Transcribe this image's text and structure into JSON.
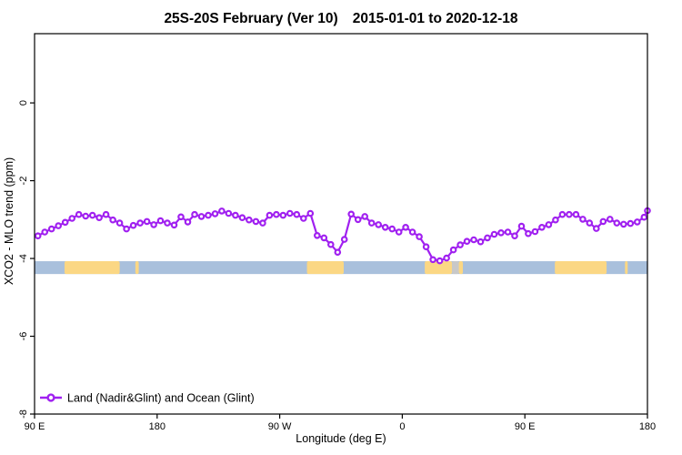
{
  "header": {
    "title_main": "25S-20S February (Ver 10)",
    "title_dates": "2015-01-01 to 2020-12-18"
  },
  "chart_data": {
    "type": "line",
    "title": "25S-20S February (Ver 10)  2015-01-01 to 2020-12-18",
    "xlabel": "Longitude (deg E)",
    "ylabel": "XCO2 - MLO trend (ppm)",
    "xlim": [
      90,
      540
    ],
    "ylim": [
      -8.0,
      1.78
    ],
    "grid": "off",
    "legend_position": "bottom-left",
    "x_ticks": [
      {
        "pos": 90,
        "label": "90 E"
      },
      {
        "pos": 180,
        "label": "180"
      },
      {
        "pos": 270,
        "label": "90 W"
      },
      {
        "pos": 360,
        "label": "0"
      },
      {
        "pos": 450,
        "label": "90 E"
      },
      {
        "pos": 540,
        "label": "180"
      }
    ],
    "y_ticks": [
      {
        "pos": 0,
        "label": "0"
      },
      {
        "pos": -2,
        "label": "-2"
      },
      {
        "pos": -4,
        "label": "-4"
      },
      {
        "pos": -6,
        "label": "-6"
      },
      {
        "pos": -8,
        "label": "-8"
      }
    ],
    "series": [
      {
        "name": "Land (Nadir&Glint) and Ocean (Glint)",
        "color": "#A020F0",
        "marker": "open-circle",
        "marker_fill": "#FFFFFF",
        "x": [
          92.5,
          97.5,
          102.5,
          107.5,
          112.5,
          117.5,
          122.5,
          127.5,
          132.5,
          137.5,
          142.5,
          147.5,
          152.5,
          157.5,
          162.5,
          167.5,
          172.5,
          177.5,
          182.5,
          187.5,
          192.5,
          197.5,
          202.5,
          207.5,
          212.5,
          217.5,
          222.5,
          227.5,
          232.5,
          237.5,
          242.5,
          247.5,
          252.5,
          257.5,
          262.5,
          267.5,
          272.5,
          277.5,
          282.5,
          287.5,
          292.5,
          297.5,
          302.5,
          307.5,
          312.5,
          317.5,
          322.5,
          327.5,
          332.5,
          337.5,
          342.5,
          347.5,
          352.5,
          357.5,
          362.5,
          367.5,
          372.5,
          377.5,
          382.5,
          387.5,
          392.5,
          397.5,
          402.5,
          407.5,
          412.5,
          417.5,
          422.5,
          427.5,
          432.5,
          437.5,
          442.5,
          447.5,
          452.5,
          457.5,
          462.5,
          467.5,
          472.5,
          477.5,
          482.5,
          487.5,
          492.5,
          497.5,
          502.5,
          507.5,
          512.5,
          517.5,
          522.5,
          527.5,
          532.5,
          537.5,
          540
        ],
        "y": [
          -3.42,
          -3.32,
          -3.24,
          -3.16,
          -3.07,
          -2.97,
          -2.87,
          -2.91,
          -2.89,
          -2.95,
          -2.87,
          -3.01,
          -3.09,
          -3.24,
          -3.15,
          -3.09,
          -3.05,
          -3.13,
          -3.03,
          -3.09,
          -3.14,
          -2.93,
          -3.06,
          -2.87,
          -2.92,
          -2.89,
          -2.85,
          -2.78,
          -2.84,
          -2.89,
          -2.95,
          -3.01,
          -3.05,
          -3.09,
          -2.89,
          -2.87,
          -2.89,
          -2.84,
          -2.87,
          -2.97,
          -2.84,
          -3.41,
          -3.47,
          -3.64,
          -3.84,
          -3.51,
          -2.86,
          -3.0,
          -2.92,
          -3.09,
          -3.13,
          -3.2,
          -3.24,
          -3.32,
          -3.2,
          -3.32,
          -3.44,
          -3.7,
          -4.03,
          -4.06,
          -3.99,
          -3.78,
          -3.65,
          -3.56,
          -3.52,
          -3.57,
          -3.47,
          -3.38,
          -3.34,
          -3.32,
          -3.42,
          -3.17,
          -3.36,
          -3.31,
          -3.2,
          -3.13,
          -3.01,
          -2.87,
          -2.87,
          -2.87,
          -2.99,
          -3.09,
          -3.23,
          -3.05,
          -2.99,
          -3.09,
          -3.12,
          -3.1,
          -3.06,
          -2.94,
          -2.77
        ]
      }
    ],
    "map_strip": {
      "description": "land-ocean strip along longitude axis",
      "y_range": [
        -4.07,
        -4.4
      ],
      "ocean_color": "#A9C0DC",
      "land_color": "#FBD784",
      "gray_color": "#C8C8C8",
      "ocean_span": [
        90,
        540
      ],
      "patches": [
        {
          "from": 112,
          "to": 152.5,
          "type": "land"
        },
        {
          "from": 164,
          "to": 166.5,
          "type": "land"
        },
        {
          "from": 290,
          "to": 317,
          "type": "land"
        },
        {
          "from": 376.5,
          "to": 396.5,
          "type": "land"
        },
        {
          "from": 396.5,
          "to": 401.5,
          "type": "gray"
        },
        {
          "from": 401.5,
          "to": 404.5,
          "type": "land"
        },
        {
          "from": 472,
          "to": 510,
          "type": "land"
        },
        {
          "from": 523.5,
          "to": 525.5,
          "type": "land"
        }
      ]
    },
    "legend": {
      "label": "Land (Nadir&Glint) and Ocean (Glint)"
    }
  }
}
